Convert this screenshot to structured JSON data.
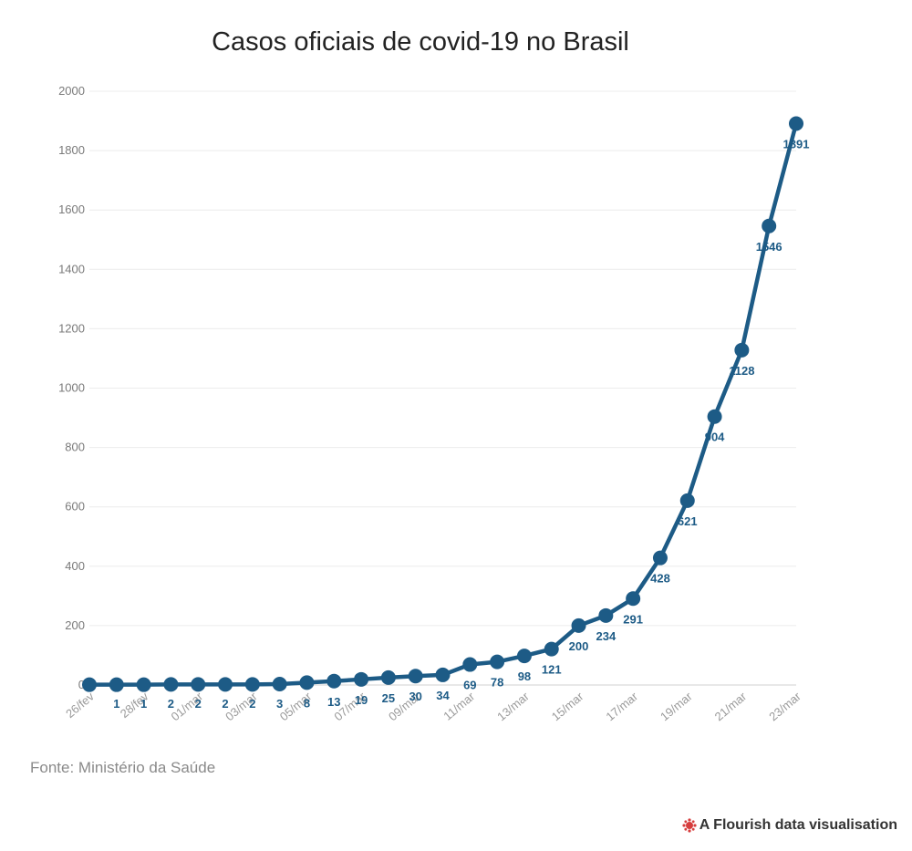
{
  "chart_data": {
    "type": "line",
    "title": "Casos oficiais de covid-19 no Brasil",
    "categories": [
      "26/fev",
      "27/fev",
      "28/fev",
      "29/fev",
      "01/mar",
      "02/mar",
      "03/mar",
      "04/mar",
      "05/mar",
      "06/mar",
      "07/mar",
      "08/mar",
      "09/mar",
      "10/mar",
      "11/mar",
      "12/mar",
      "13/mar",
      "14/mar",
      "15/mar",
      "16/mar",
      "17/mar",
      "18/mar",
      "19/mar",
      "20/mar",
      "21/mar",
      "22/mar",
      "23/mar"
    ],
    "x_tick_labels": [
      "26/fev",
      "28/fev",
      "01/mar",
      "03/mar",
      "05/mar",
      "07/mar",
      "09/mar",
      "11/mar",
      "13/mar",
      "15/mar",
      "17/mar",
      "19/mar",
      "21/mar",
      "23/mar"
    ],
    "series": [
      {
        "values": [
          1,
          1,
          1,
          2,
          2,
          2,
          2,
          3,
          8,
          13,
          19,
          25,
          30,
          34,
          69,
          78,
          98,
          121,
          200,
          234,
          291,
          428,
          621,
          904,
          1128,
          1546,
          1891
        ],
        "data_labels": [
          "",
          "1",
          "1",
          "2",
          "2",
          "2",
          "2",
          "3",
          "8",
          "13",
          "19",
          "25",
          "30",
          "34",
          "69",
          "78",
          "98",
          "121",
          "200",
          "234",
          "291",
          "428",
          "621",
          "904",
          "1128",
          "1546",
          "1891"
        ],
        "color": "#1d5b86"
      }
    ],
    "ylim": [
      0,
      2000
    ],
    "y_ticks": [
      0,
      200,
      400,
      600,
      800,
      1000,
      1200,
      1400,
      1600,
      1800,
      2000
    ],
    "xlabel": "",
    "ylabel": "",
    "grid": true,
    "legend": "none"
  },
  "source": "Fonte: Ministério da Saúde",
  "credit": "A Flourish data visualisation",
  "colors": {
    "line": "#1d5b86",
    "grid": "#ececec",
    "logo": "#d63d3d"
  }
}
